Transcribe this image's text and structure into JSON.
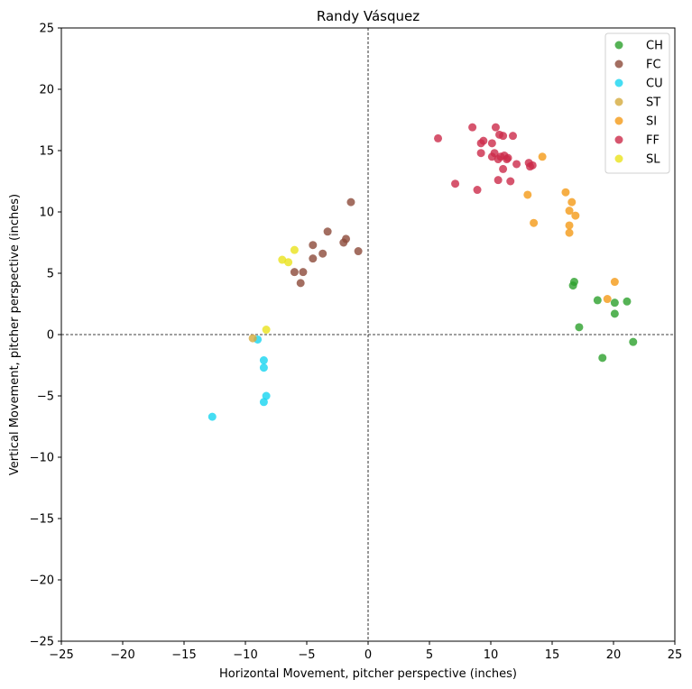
{
  "chart_data": {
    "type": "scatter",
    "title": "Randy Vásquez",
    "xlabel": "Horizontal Movement, pitcher perspective (inches)",
    "ylabel": "Vertical Movement, pitcher perspective (inches)",
    "xlim": [
      -25,
      25
    ],
    "ylim": [
      -25,
      25
    ],
    "xticks": [
      -25,
      -20,
      -15,
      -10,
      -5,
      0,
      5,
      10,
      15,
      20,
      25
    ],
    "yticks": [
      -25,
      -20,
      -15,
      -10,
      -5,
      0,
      5,
      10,
      15,
      20,
      25
    ],
    "grid": false,
    "reference_lines": [
      "x=0",
      "y=0"
    ],
    "legend_position": "top-right",
    "series": [
      {
        "name": "CH",
        "color": "#2ca02c",
        "points": [
          [
            16.8,
            4.3
          ],
          [
            16.7,
            4.0
          ],
          [
            18.7,
            2.8
          ],
          [
            20.1,
            2.6
          ],
          [
            21.1,
            2.7
          ],
          [
            20.1,
            1.7
          ],
          [
            17.2,
            0.6
          ],
          [
            21.6,
            -0.6
          ],
          [
            19.1,
            -1.9
          ]
        ]
      },
      {
        "name": "FC",
        "color": "#8c4a3a",
        "points": [
          [
            -1.4,
            10.8
          ],
          [
            -3.3,
            8.4
          ],
          [
            -1.8,
            7.8
          ],
          [
            -2.0,
            7.5
          ],
          [
            -4.5,
            7.3
          ],
          [
            -0.8,
            6.8
          ],
          [
            -3.7,
            6.6
          ],
          [
            -4.5,
            6.2
          ],
          [
            -6.0,
            5.1
          ],
          [
            -5.3,
            5.1
          ],
          [
            -5.5,
            4.2
          ]
        ]
      },
      {
        "name": "CU",
        "color": "#17d4f0",
        "points": [
          [
            -9.0,
            -0.4
          ],
          [
            -8.5,
            -2.1
          ],
          [
            -8.5,
            -2.7
          ],
          [
            -8.3,
            -5.0
          ],
          [
            -8.5,
            -5.5
          ],
          [
            -12.7,
            -6.7
          ]
        ]
      },
      {
        "name": "ST",
        "color": "#d4aa3c",
        "points": [
          [
            -9.4,
            -0.3
          ]
        ]
      },
      {
        "name": "SI",
        "color": "#f49a16",
        "points": [
          [
            14.2,
            14.5
          ],
          [
            16.1,
            11.6
          ],
          [
            13.0,
            11.4
          ],
          [
            16.6,
            10.8
          ],
          [
            16.4,
            10.1
          ],
          [
            16.9,
            9.7
          ],
          [
            13.5,
            9.1
          ],
          [
            16.4,
            8.9
          ],
          [
            16.4,
            8.3
          ],
          [
            20.1,
            4.3
          ],
          [
            19.5,
            2.9
          ]
        ]
      },
      {
        "name": "FF",
        "color": "#cc2a4a",
        "points": [
          [
            8.5,
            16.9
          ],
          [
            10.4,
            16.9
          ],
          [
            10.7,
            16.3
          ],
          [
            11.0,
            16.2
          ],
          [
            11.8,
            16.2
          ],
          [
            5.7,
            16.0
          ],
          [
            9.4,
            15.8
          ],
          [
            9.2,
            15.6
          ],
          [
            10.1,
            15.6
          ],
          [
            10.3,
            14.8
          ],
          [
            9.2,
            14.8
          ],
          [
            10.1,
            14.5
          ],
          [
            10.8,
            14.5
          ],
          [
            11.1,
            14.6
          ],
          [
            11.4,
            14.4
          ],
          [
            11.3,
            14.3
          ],
          [
            10.6,
            14.3
          ],
          [
            12.1,
            13.9
          ],
          [
            13.1,
            14.0
          ],
          [
            13.4,
            13.8
          ],
          [
            13.2,
            13.7
          ],
          [
            11.0,
            13.5
          ],
          [
            10.6,
            12.6
          ],
          [
            11.6,
            12.5
          ],
          [
            7.1,
            12.3
          ],
          [
            8.9,
            11.8
          ]
        ]
      },
      {
        "name": "SL",
        "color": "#eae21c",
        "points": [
          [
            -6.0,
            6.9
          ],
          [
            -7.0,
            6.1
          ],
          [
            -6.5,
            5.9
          ],
          [
            -8.3,
            0.4
          ]
        ]
      }
    ]
  }
}
